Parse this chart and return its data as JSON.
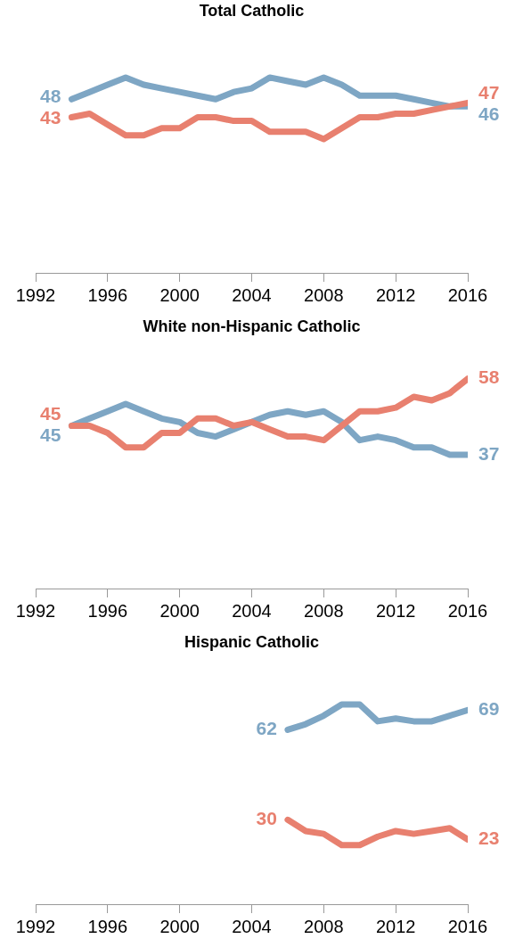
{
  "chart_data": [
    {
      "type": "line",
      "title": "Total Catholic",
      "x": [
        1994,
        1995,
        1996,
        1997,
        1998,
        1999,
        2000,
        2001,
        2002,
        2003,
        2004,
        2005,
        2006,
        2007,
        2008,
        2009,
        2010,
        2011,
        2012,
        2013,
        2014,
        2015,
        2016
      ],
      "xlim": [
        1992,
        2016
      ],
      "xticks": [
        1992,
        1996,
        2000,
        2004,
        2008,
        2012,
        2016
      ],
      "tick_labels": "x",
      "grid": false,
      "legend": false,
      "series": [
        {
          "color": "#e8806f",
          "values": [
            43,
            44,
            41,
            38,
            38,
            40,
            40,
            43,
            43,
            42,
            42,
            39,
            39,
            39,
            37,
            40,
            43,
            43,
            44,
            44,
            45,
            46,
            47
          ],
          "value_labels": [
            "43",
            null,
            null,
            null,
            null,
            null,
            null,
            null,
            null,
            null,
            null,
            null,
            null,
            null,
            null,
            null,
            null,
            null,
            null,
            null,
            null,
            null,
            "47"
          ]
        },
        {
          "color": "#7ea6c4",
          "values": [
            48,
            50,
            52,
            54,
            52,
            51,
            50,
            49,
            48,
            50,
            51,
            54,
            53,
            52,
            54,
            52,
            49,
            49,
            49,
            48,
            47,
            46,
            46
          ],
          "value_labels": [
            "48",
            null,
            null,
            null,
            null,
            null,
            null,
            null,
            null,
            null,
            null,
            null,
            null,
            null,
            null,
            null,
            null,
            null,
            null,
            null,
            null,
            null,
            "46"
          ]
        }
      ]
    },
    {
      "type": "line",
      "title": "White non-Hispanic Catholic",
      "x": [
        1994,
        1995,
        1996,
        1997,
        1998,
        1999,
        2000,
        2001,
        2002,
        2003,
        2004,
        2005,
        2006,
        2007,
        2008,
        2009,
        2010,
        2011,
        2012,
        2013,
        2014,
        2015,
        2016
      ],
      "xlim": [
        1992,
        2016
      ],
      "xticks": [
        1992,
        1996,
        2000,
        2004,
        2008,
        2012,
        2016
      ],
      "tick_labels": "x",
      "grid": false,
      "legend": false,
      "series": [
        {
          "color": "#e8806f",
          "values": [
            45,
            45,
            43,
            39,
            39,
            43,
            43,
            47,
            47,
            45,
            46,
            44,
            42,
            42,
            41,
            45,
            49,
            49,
            50,
            53,
            52,
            54,
            58
          ],
          "value_labels": [
            "45",
            null,
            null,
            null,
            null,
            null,
            null,
            null,
            null,
            null,
            null,
            null,
            null,
            null,
            null,
            null,
            null,
            null,
            null,
            null,
            null,
            null,
            "58"
          ]
        },
        {
          "color": "#7ea6c4",
          "values": [
            45,
            47,
            49,
            51,
            49,
            47,
            46,
            43,
            42,
            44,
            46,
            48,
            49,
            48,
            49,
            46,
            41,
            42,
            41,
            39,
            39,
            37,
            37
          ],
          "value_labels": [
            "45",
            null,
            null,
            null,
            null,
            null,
            null,
            null,
            null,
            null,
            null,
            null,
            null,
            null,
            null,
            null,
            null,
            null,
            null,
            null,
            null,
            null,
            "37"
          ]
        }
      ]
    },
    {
      "type": "line",
      "title": "Hispanic Catholic",
      "x": [
        2006,
        2007,
        2008,
        2009,
        2010,
        2011,
        2012,
        2013,
        2014,
        2015,
        2016
      ],
      "xlim": [
        1992,
        2016
      ],
      "xticks": [
        1992,
        1996,
        2000,
        2004,
        2008,
        2012,
        2016
      ],
      "tick_labels": "x",
      "grid": false,
      "legend": false,
      "series": [
        {
          "color": "#e8806f",
          "values": [
            30,
            26,
            25,
            21,
            21,
            24,
            26,
            25,
            26,
            27,
            23
          ],
          "value_labels": [
            "30",
            null,
            null,
            null,
            null,
            null,
            null,
            null,
            null,
            null,
            "23"
          ]
        },
        {
          "color": "#7ea6c4",
          "values": [
            62,
            64,
            67,
            71,
            71,
            65,
            66,
            65,
            65,
            67,
            69
          ],
          "value_labels": [
            "62",
            null,
            null,
            null,
            null,
            null,
            null,
            null,
            null,
            null,
            "69"
          ]
        }
      ]
    }
  ]
}
